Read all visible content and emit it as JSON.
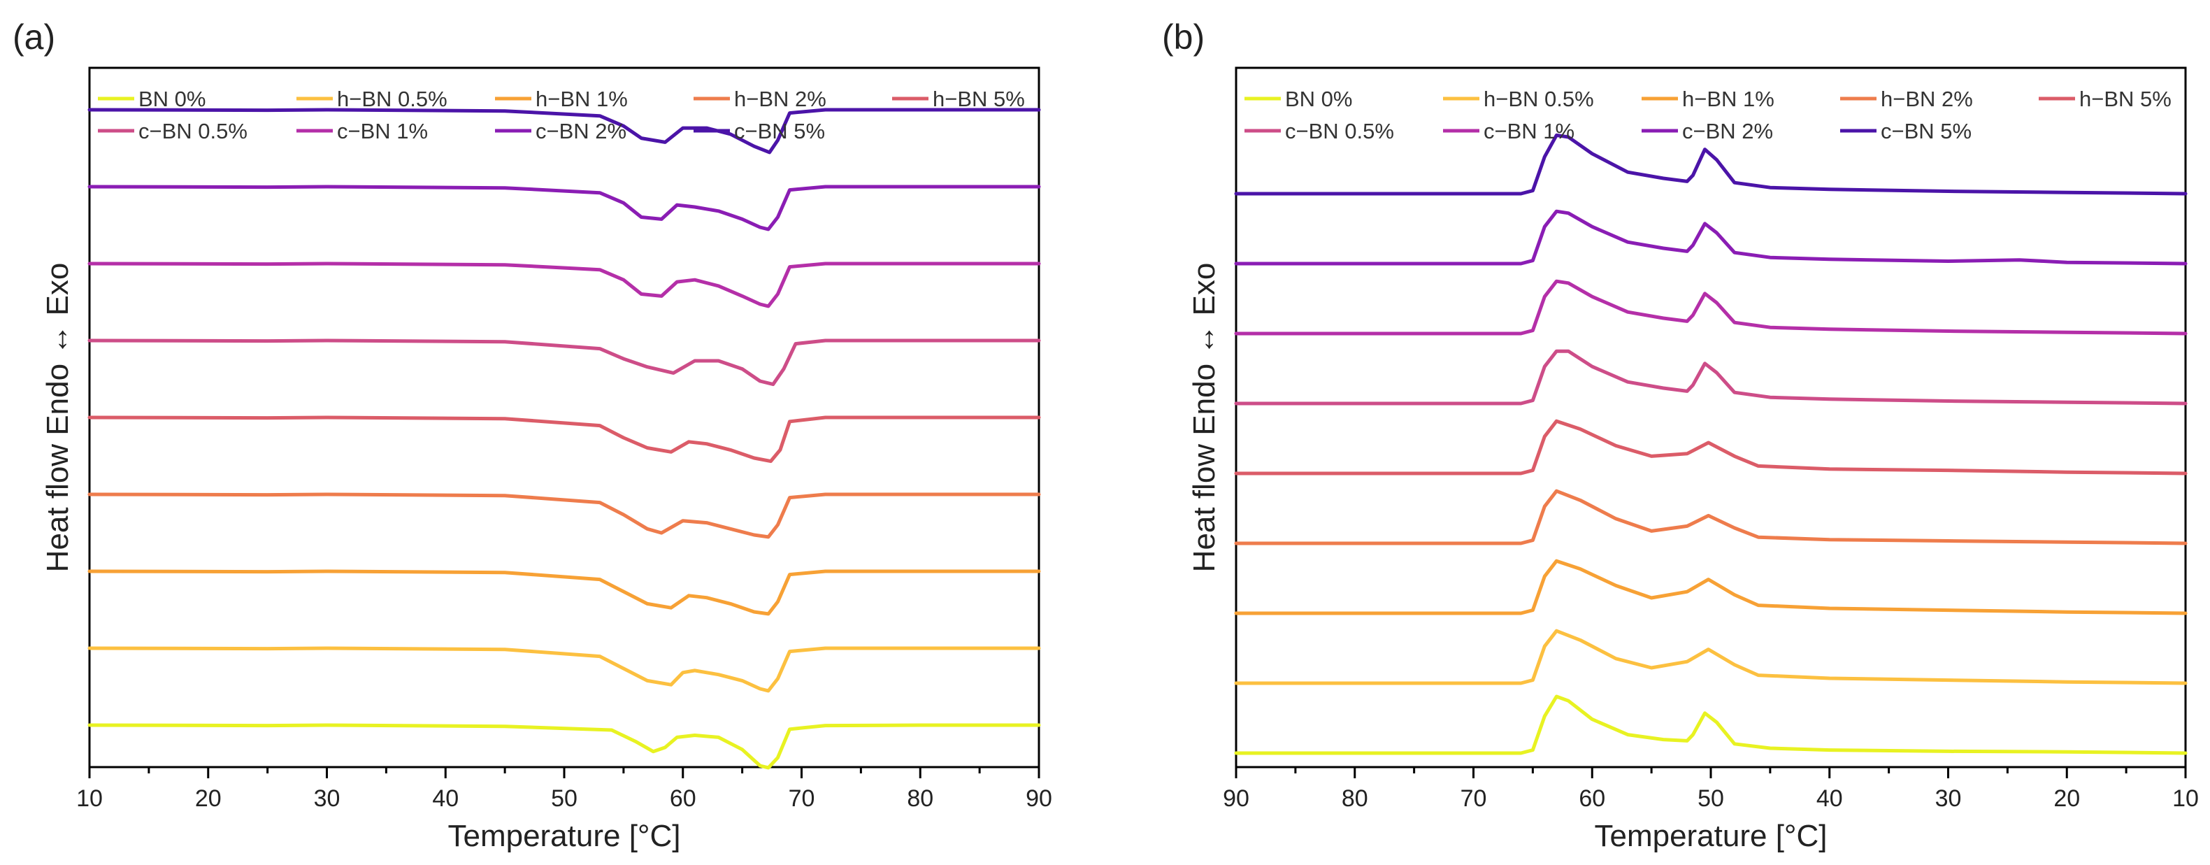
{
  "chart_data": [
    {
      "panel_label": "(a)",
      "type": "line",
      "xlabel": "Temperature [°C]",
      "ylabel": "Heat flow Endo ↔ Exo",
      "xlim": [
        10,
        90
      ],
      "x_reversed": false,
      "xticks": [
        10,
        20,
        30,
        40,
        50,
        60,
        70,
        80,
        90
      ],
      "y_ticks_shown": false,
      "legend": "top",
      "grid": false,
      "series": [
        {
          "name": "BN 0%",
          "color": "#e8f222",
          "offset": 0.06,
          "x": [
            10,
            25,
            30,
            45,
            54,
            56,
            57.5,
            58.5,
            59.5,
            61,
            63,
            65,
            66.5,
            67.2,
            68,
            69,
            72,
            80,
            90
          ],
          "y": [
            0,
            -0.01,
            0,
            -0.03,
            -0.12,
            -0.4,
            -0.65,
            -0.55,
            -0.3,
            -0.25,
            -0.3,
            -0.6,
            -1.0,
            -1.05,
            -0.8,
            -0.1,
            -0.01,
            0,
            0
          ]
        },
        {
          "name": "h−BN 0.5%",
          "color": "#fcc040",
          "offset": 0.17,
          "x": [
            10,
            25,
            30,
            45,
            53,
            55,
            57,
            59,
            60,
            61,
            63,
            65,
            66.5,
            67.2,
            68,
            69,
            72,
            80,
            90
          ],
          "y": [
            0,
            -0.01,
            0,
            -0.03,
            -0.2,
            -0.5,
            -0.8,
            -0.9,
            -0.6,
            -0.55,
            -0.65,
            -0.8,
            -1.0,
            -1.05,
            -0.75,
            -0.08,
            0,
            0,
            0
          ]
        },
        {
          "name": "h−BN 1%",
          "color": "#f7a135",
          "offset": 0.28,
          "x": [
            10,
            25,
            30,
            45,
            53,
            55,
            57,
            59,
            60.5,
            62,
            64,
            66,
            67.2,
            68,
            69,
            72,
            80,
            90
          ],
          "y": [
            0,
            -0.01,
            0,
            -0.03,
            -0.2,
            -0.5,
            -0.8,
            -0.9,
            -0.6,
            -0.65,
            -0.8,
            -1.0,
            -1.05,
            -0.75,
            -0.08,
            0,
            0,
            0
          ]
        },
        {
          "name": "h−BN 2%",
          "color": "#ee7c4c",
          "offset": 0.39,
          "x": [
            10,
            25,
            30,
            45,
            53,
            55,
            57,
            58.2,
            60,
            62,
            64,
            66,
            67.2,
            68,
            69,
            72,
            80,
            90
          ],
          "y": [
            0,
            -0.01,
            0,
            -0.03,
            -0.2,
            -0.5,
            -0.85,
            -0.95,
            -0.65,
            -0.7,
            -0.85,
            -1.0,
            -1.05,
            -0.75,
            -0.08,
            0,
            0,
            0
          ]
        },
        {
          "name": "h−BN 5%",
          "color": "#db5c68",
          "offset": 0.5,
          "x": [
            10,
            25,
            30,
            45,
            53,
            55,
            57,
            59,
            60.5,
            62,
            64,
            66,
            67.4,
            68.2,
            69,
            72,
            80,
            90
          ],
          "y": [
            0,
            -0.01,
            0,
            -0.03,
            -0.2,
            -0.5,
            -0.75,
            -0.85,
            -0.6,
            -0.65,
            -0.8,
            -1.0,
            -1.08,
            -0.8,
            -0.1,
            0,
            0,
            0
          ]
        },
        {
          "name": "c−BN 0.5%",
          "color": "#cd4d88",
          "offset": 0.61,
          "x": [
            10,
            25,
            30,
            45,
            53,
            55,
            57,
            59.2,
            61,
            63,
            65,
            66.5,
            67.6,
            68.5,
            69.5,
            72,
            80,
            90
          ],
          "y": [
            0,
            -0.01,
            0,
            -0.03,
            -0.2,
            -0.45,
            -0.65,
            -0.8,
            -0.5,
            -0.5,
            -0.7,
            -1.0,
            -1.08,
            -0.7,
            -0.08,
            0,
            0,
            0
          ]
        },
        {
          "name": "c−BN 1%",
          "color": "#b42fa8",
          "offset": 0.72,
          "x": [
            10,
            25,
            30,
            45,
            53,
            55,
            56.5,
            58.2,
            59.5,
            61,
            63,
            65,
            66.5,
            67.2,
            68,
            69,
            72,
            80,
            90
          ],
          "y": [
            0,
            -0.01,
            0,
            -0.03,
            -0.15,
            -0.4,
            -0.75,
            -0.8,
            -0.45,
            -0.4,
            -0.55,
            -0.8,
            -1.0,
            -1.05,
            -0.75,
            -0.08,
            0,
            0,
            0
          ]
        },
        {
          "name": "c−BN 2%",
          "color": "#8a1db4",
          "offset": 0.83,
          "x": [
            10,
            25,
            30,
            45,
            53,
            55,
            56.5,
            58.2,
            59.5,
            61,
            63,
            65,
            66.5,
            67.2,
            68,
            69,
            72,
            80,
            90
          ],
          "y": [
            0,
            -0.01,
            0,
            -0.03,
            -0.15,
            -0.4,
            -0.75,
            -0.8,
            -0.45,
            -0.5,
            -0.6,
            -0.8,
            -1.0,
            -1.05,
            -0.75,
            -0.08,
            0,
            0,
            0
          ]
        },
        {
          "name": "c−BN 5%",
          "color": "#4b14a8",
          "offset": 0.94,
          "x": [
            10,
            25,
            30,
            45,
            53,
            55,
            56.5,
            58.5,
            60,
            62,
            64,
            66,
            67.3,
            68,
            69,
            72,
            80,
            90
          ],
          "y": [
            0,
            -0.01,
            0,
            -0.03,
            -0.15,
            -0.4,
            -0.7,
            -0.8,
            -0.45,
            -0.45,
            -0.6,
            -0.9,
            -1.05,
            -0.75,
            -0.08,
            0,
            0,
            0
          ]
        }
      ]
    },
    {
      "panel_label": "(b)",
      "type": "line",
      "xlabel": "Temperature [°C]",
      "ylabel": "Heat flow Endo ↔ Exo",
      "xlim": [
        90,
        10
      ],
      "x_reversed": true,
      "xticks": [
        90,
        80,
        70,
        60,
        50,
        40,
        30,
        20,
        10
      ],
      "y_ticks_shown": false,
      "legend": "top",
      "grid": false,
      "series": [
        {
          "name": "BN 0%",
          "color": "#e8f222",
          "offset": 0.02,
          "x": [
            90,
            70,
            66,
            65,
            64,
            63,
            62,
            60,
            57,
            54,
            52,
            51.5,
            50.5,
            49.5,
            48,
            45,
            40,
            30,
            20,
            10
          ],
          "y": [
            0,
            0,
            0,
            0.05,
            0.6,
            0.92,
            0.85,
            0.55,
            0.3,
            0.22,
            0.2,
            0.3,
            0.65,
            0.5,
            0.15,
            0.08,
            0.05,
            0.03,
            0.02,
            0
          ]
        },
        {
          "name": "h−BN 0.5%",
          "color": "#fcc040",
          "offset": 0.12,
          "x": [
            90,
            70,
            66,
            65,
            64,
            63,
            61,
            58,
            55,
            52,
            50.2,
            48,
            46,
            40,
            30,
            20,
            10
          ],
          "y": [
            0,
            0,
            0,
            0.05,
            0.6,
            0.85,
            0.7,
            0.4,
            0.25,
            0.35,
            0.55,
            0.3,
            0.13,
            0.08,
            0.05,
            0.02,
            0
          ]
        },
        {
          "name": "h−BN 1%",
          "color": "#f7a135",
          "offset": 0.22,
          "x": [
            90,
            70,
            66,
            65,
            64,
            63,
            61,
            58,
            55,
            52,
            50.2,
            48,
            46,
            40,
            30,
            20,
            10
          ],
          "y": [
            0,
            0,
            0,
            0.05,
            0.6,
            0.85,
            0.72,
            0.45,
            0.25,
            0.35,
            0.55,
            0.3,
            0.13,
            0.08,
            0.05,
            0.02,
            0
          ]
        },
        {
          "name": "h−BN 2%",
          "color": "#ee7c4c",
          "offset": 0.32,
          "x": [
            90,
            70,
            66,
            65,
            64,
            63,
            61,
            58,
            55,
            52,
            50.2,
            48,
            46,
            40,
            30,
            20,
            10
          ],
          "y": [
            0,
            0,
            0,
            0.05,
            0.6,
            0.85,
            0.7,
            0.4,
            0.2,
            0.28,
            0.45,
            0.25,
            0.1,
            0.06,
            0.04,
            0.02,
            0
          ]
        },
        {
          "name": "h−BN 5%",
          "color": "#db5c68",
          "offset": 0.42,
          "x": [
            90,
            70,
            66,
            65,
            64,
            63,
            61,
            58,
            55,
            52,
            50.2,
            48,
            46,
            40,
            30,
            20,
            10
          ],
          "y": [
            0,
            0,
            0,
            0.05,
            0.6,
            0.85,
            0.72,
            0.45,
            0.28,
            0.32,
            0.5,
            0.28,
            0.12,
            0.07,
            0.05,
            0.02,
            0
          ]
        },
        {
          "name": "c−BN 0.5%",
          "color": "#cd4d88",
          "offset": 0.52,
          "x": [
            90,
            70,
            66,
            65,
            64,
            63,
            62,
            60,
            57,
            54,
            52,
            51.5,
            50.5,
            49.5,
            48,
            45,
            40,
            30,
            20,
            10
          ],
          "y": [
            0,
            0,
            0,
            0.05,
            0.6,
            0.85,
            0.85,
            0.6,
            0.35,
            0.25,
            0.2,
            0.3,
            0.65,
            0.5,
            0.18,
            0.1,
            0.07,
            0.04,
            0.02,
            0
          ]
        },
        {
          "name": "c−BN 1%",
          "color": "#b42fa8",
          "offset": 0.62,
          "x": [
            90,
            70,
            66,
            65,
            64,
            63,
            62,
            60,
            57,
            54,
            52,
            51.5,
            50.5,
            49.5,
            48,
            45,
            40,
            30,
            20,
            10
          ],
          "y": [
            0,
            0,
            0,
            0.05,
            0.6,
            0.85,
            0.82,
            0.6,
            0.35,
            0.25,
            0.2,
            0.3,
            0.65,
            0.5,
            0.18,
            0.1,
            0.07,
            0.04,
            0.02,
            0
          ]
        },
        {
          "name": "c−BN 2%",
          "color": "#8a1db4",
          "offset": 0.72,
          "x": [
            90,
            70,
            66,
            65,
            64,
            63,
            62,
            60,
            57,
            54,
            52,
            51.5,
            50.5,
            49.5,
            48,
            45,
            40,
            30,
            24,
            20,
            10
          ],
          "y": [
            0,
            0,
            0,
            0.05,
            0.6,
            0.85,
            0.82,
            0.6,
            0.35,
            0.25,
            0.2,
            0.3,
            0.65,
            0.5,
            0.18,
            0.1,
            0.07,
            0.04,
            0.06,
            0.02,
            0
          ]
        },
        {
          "name": "c−BN 5%",
          "color": "#4b14a8",
          "offset": 0.82,
          "x": [
            90,
            70,
            66,
            65,
            64,
            63,
            62,
            60,
            57,
            54,
            52,
            51.5,
            50.5,
            49.5,
            48,
            45,
            40,
            30,
            20,
            10
          ],
          "y": [
            0,
            0,
            0,
            0.05,
            0.6,
            0.95,
            0.92,
            0.65,
            0.35,
            0.25,
            0.2,
            0.3,
            0.72,
            0.55,
            0.18,
            0.1,
            0.07,
            0.04,
            0.02,
            0
          ]
        }
      ]
    }
  ]
}
